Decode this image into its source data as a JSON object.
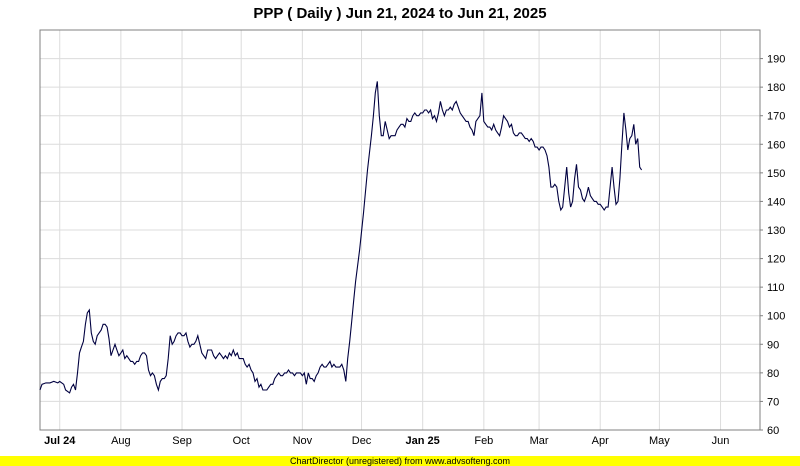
{
  "chart_data": {
    "type": "line",
    "title": "PPP ( Daily ) Jun 21, 2024 to Jun 21, 2025",
    "xlabel": "",
    "ylabel": "",
    "grid": true,
    "line_color": "#000040",
    "x_ticks": [
      {
        "label": "Jul 24",
        "day": 10,
        "bold": true
      },
      {
        "label": "Aug",
        "day": 41,
        "bold": false
      },
      {
        "label": "Sep",
        "day": 72,
        "bold": false
      },
      {
        "label": "Oct",
        "day": 102,
        "bold": false
      },
      {
        "label": "Nov",
        "day": 133,
        "bold": false
      },
      {
        "label": "Dec",
        "day": 163,
        "bold": false
      },
      {
        "label": "Jan 25",
        "day": 194,
        "bold": true
      },
      {
        "label": "Feb",
        "day": 225,
        "bold": false
      },
      {
        "label": "Mar",
        "day": 253,
        "bold": false
      },
      {
        "label": "Apr",
        "day": 284,
        "bold": false
      },
      {
        "label": "May",
        "day": 314,
        "bold": false
      },
      {
        "label": "Jun",
        "day": 345,
        "bold": false
      }
    ],
    "y_ticks": [
      60,
      70,
      80,
      90,
      100,
      110,
      120,
      130,
      140,
      150,
      160,
      170,
      180,
      190
    ],
    "ylim": [
      60,
      200
    ],
    "xlim_days": [
      0,
      365
    ],
    "series": [
      {
        "points": [
          [
            0,
            74
          ],
          [
            1,
            76
          ],
          [
            3,
            76.5
          ],
          [
            5,
            76.5
          ],
          [
            7,
            77
          ],
          [
            9,
            76.5
          ],
          [
            10,
            77
          ],
          [
            12,
            76
          ],
          [
            13,
            74
          ],
          [
            15,
            73
          ],
          [
            16,
            75
          ],
          [
            17,
            76
          ],
          [
            18,
            74
          ],
          [
            19,
            80
          ],
          [
            20,
            87
          ],
          [
            21,
            89
          ],
          [
            22,
            91
          ],
          [
            23,
            97
          ],
          [
            24,
            101
          ],
          [
            25,
            102
          ],
          [
            26,
            94
          ],
          [
            27,
            91
          ],
          [
            28,
            90
          ],
          [
            29,
            93
          ],
          [
            31,
            95
          ],
          [
            32,
            97
          ],
          [
            33,
            97
          ],
          [
            34,
            96
          ],
          [
            35,
            92
          ],
          [
            36,
            86
          ],
          [
            37,
            88
          ],
          [
            38,
            90
          ],
          [
            39,
            88
          ],
          [
            40,
            86
          ],
          [
            41,
            87
          ],
          [
            42,
            88
          ],
          [
            43,
            85
          ],
          [
            44,
            86
          ],
          [
            46,
            84
          ],
          [
            47,
            84
          ],
          [
            48,
            83
          ],
          [
            49,
            84
          ],
          [
            50,
            84
          ],
          [
            51,
            86
          ],
          [
            52,
            87
          ],
          [
            53,
            87
          ],
          [
            54,
            86
          ],
          [
            55,
            81
          ],
          [
            56,
            79
          ],
          [
            57,
            80
          ],
          [
            58,
            79
          ],
          [
            59,
            76
          ],
          [
            60,
            74
          ],
          [
            61,
            77
          ],
          [
            62,
            78
          ],
          [
            63,
            78
          ],
          [
            64,
            79
          ],
          [
            65,
            85
          ],
          [
            66,
            93
          ],
          [
            67,
            90
          ],
          [
            68,
            91
          ],
          [
            69,
            93
          ],
          [
            70,
            94
          ],
          [
            71,
            94
          ],
          [
            72,
            93
          ],
          [
            73,
            93
          ],
          [
            74,
            94
          ],
          [
            75,
            91
          ],
          [
            76,
            89
          ],
          [
            77,
            90
          ],
          [
            78,
            90
          ],
          [
            79,
            91
          ],
          [
            80,
            93
          ],
          [
            81,
            90
          ],
          [
            82,
            87
          ],
          [
            83,
            86
          ],
          [
            84,
            85
          ],
          [
            85,
            88
          ],
          [
            86,
            88
          ],
          [
            87,
            88
          ],
          [
            88,
            86
          ],
          [
            89,
            85
          ],
          [
            90,
            86
          ],
          [
            91,
            87
          ],
          [
            92,
            86
          ],
          [
            93,
            85
          ],
          [
            94,
            86
          ],
          [
            95,
            85
          ],
          [
            96,
            87
          ],
          [
            97,
            86
          ],
          [
            98,
            88
          ],
          [
            99,
            86
          ],
          [
            100,
            87
          ],
          [
            101,
            85
          ],
          [
            103,
            85
          ],
          [
            104,
            83
          ],
          [
            105,
            82
          ],
          [
            106,
            83
          ],
          [
            107,
            81
          ],
          [
            108,
            80
          ],
          [
            109,
            77
          ],
          [
            110,
            78
          ],
          [
            111,
            75
          ],
          [
            112,
            76
          ],
          [
            113,
            74
          ],
          [
            115,
            74
          ],
          [
            116,
            75
          ],
          [
            117,
            76
          ],
          [
            118,
            76
          ],
          [
            119,
            78
          ],
          [
            120,
            79
          ],
          [
            121,
            80
          ],
          [
            122,
            79
          ],
          [
            123,
            79
          ],
          [
            124,
            80
          ],
          [
            125,
            80
          ],
          [
            126,
            81
          ],
          [
            127,
            80
          ],
          [
            128,
            80
          ],
          [
            129,
            79
          ],
          [
            130,
            80
          ],
          [
            131,
            80
          ],
          [
            132,
            80
          ],
          [
            133,
            79
          ],
          [
            134,
            80
          ],
          [
            135,
            76
          ],
          [
            136,
            80
          ],
          [
            137,
            78
          ],
          [
            138,
            78
          ],
          [
            139,
            77
          ],
          [
            140,
            79
          ],
          [
            141,
            80
          ],
          [
            142,
            82
          ],
          [
            143,
            83
          ],
          [
            144,
            82
          ],
          [
            145,
            82
          ],
          [
            146,
            83
          ],
          [
            147,
            84
          ],
          [
            148,
            82
          ],
          [
            149,
            83
          ],
          [
            150,
            82
          ],
          [
            151,
            82
          ],
          [
            152,
            82
          ],
          [
            153,
            83
          ],
          [
            154,
            81
          ],
          [
            155,
            77
          ],
          [
            156,
            85
          ],
          [
            157,
            91
          ],
          [
            158,
            98
          ],
          [
            159,
            105
          ],
          [
            160,
            112
          ],
          [
            162,
            123
          ],
          [
            164,
            136
          ],
          [
            166,
            151
          ],
          [
            168,
            163
          ],
          [
            169,
            170
          ],
          [
            170,
            178
          ],
          [
            171,
            182
          ],
          [
            172,
            170
          ],
          [
            173,
            163
          ],
          [
            174,
            163
          ],
          [
            175,
            168
          ],
          [
            176,
            165
          ],
          [
            177,
            162
          ],
          [
            178,
            163
          ],
          [
            179,
            163
          ],
          [
            180,
            163
          ],
          [
            181,
            165
          ],
          [
            182,
            166
          ],
          [
            183,
            167
          ],
          [
            184,
            167
          ],
          [
            185,
            166
          ],
          [
            186,
            169
          ],
          [
            187,
            168
          ],
          [
            188,
            168
          ],
          [
            189,
            170
          ],
          [
            190,
            171
          ],
          [
            191,
            170
          ],
          [
            192,
            170
          ],
          [
            193,
            171
          ],
          [
            194,
            171
          ],
          [
            195,
            172
          ],
          [
            196,
            172
          ],
          [
            197,
            171
          ],
          [
            198,
            172
          ],
          [
            199,
            169
          ],
          [
            200,
            170
          ],
          [
            201,
            168
          ],
          [
            202,
            171
          ],
          [
            203,
            175
          ],
          [
            204,
            172
          ],
          [
            205,
            170
          ],
          [
            206,
            172
          ],
          [
            207,
            172
          ],
          [
            208,
            173
          ],
          [
            209,
            172
          ],
          [
            210,
            174
          ],
          [
            211,
            175
          ],
          [
            212,
            173
          ],
          [
            213,
            171
          ],
          [
            214,
            170
          ],
          [
            215,
            169
          ],
          [
            216,
            168
          ],
          [
            217,
            168
          ],
          [
            218,
            166
          ],
          [
            219,
            165
          ],
          [
            220,
            163
          ],
          [
            221,
            168
          ],
          [
            222,
            169
          ],
          [
            223,
            170
          ],
          [
            224,
            178
          ],
          [
            225,
            168
          ],
          [
            226,
            167
          ],
          [
            227,
            166
          ],
          [
            228,
            166
          ],
          [
            229,
            165
          ],
          [
            230,
            167
          ],
          [
            231,
            165
          ],
          [
            232,
            164
          ],
          [
            233,
            163
          ],
          [
            234,
            166
          ],
          [
            235,
            170
          ],
          [
            236,
            169
          ],
          [
            237,
            168
          ],
          [
            238,
            166
          ],
          [
            239,
            167
          ],
          [
            240,
            164
          ],
          [
            241,
            163
          ],
          [
            242,
            163
          ],
          [
            243,
            164
          ],
          [
            244,
            164
          ],
          [
            245,
            163
          ],
          [
            246,
            162
          ],
          [
            247,
            162
          ],
          [
            248,
            161
          ],
          [
            249,
            162
          ],
          [
            250,
            161
          ],
          [
            251,
            159
          ],
          [
            252,
            159
          ],
          [
            253,
            158
          ],
          [
            254,
            159
          ],
          [
            255,
            159
          ],
          [
            256,
            158
          ],
          [
            257,
            156
          ],
          [
            258,
            152
          ],
          [
            259,
            145
          ],
          [
            260,
            145
          ],
          [
            261,
            146
          ],
          [
            262,
            145
          ],
          [
            263,
            140
          ],
          [
            264,
            137
          ],
          [
            265,
            138
          ],
          [
            266,
            145
          ],
          [
            267,
            152
          ],
          [
            268,
            143
          ],
          [
            269,
            138
          ],
          [
            270,
            140
          ],
          [
            271,
            148
          ],
          [
            272,
            153
          ],
          [
            273,
            145
          ],
          [
            274,
            144
          ],
          [
            275,
            141
          ],
          [
            276,
            140
          ],
          [
            277,
            142
          ],
          [
            278,
            145
          ],
          [
            279,
            142
          ],
          [
            280,
            141
          ],
          [
            281,
            140
          ],
          [
            282,
            140
          ],
          [
            283,
            139
          ],
          [
            284,
            139
          ],
          [
            285,
            138
          ],
          [
            286,
            137
          ],
          [
            287,
            138
          ],
          [
            288,
            138
          ],
          [
            289,
            145
          ],
          [
            290,
            152
          ],
          [
            291,
            145
          ],
          [
            292,
            139
          ],
          [
            293,
            140
          ],
          [
            294,
            148
          ],
          [
            295,
            160
          ],
          [
            296,
            171
          ],
          [
            297,
            165
          ],
          [
            298,
            158
          ],
          [
            299,
            162
          ],
          [
            300,
            163
          ],
          [
            301,
            167
          ],
          [
            302,
            160
          ],
          [
            303,
            162
          ],
          [
            304,
            152
          ],
          [
            305,
            151
          ]
        ]
      }
    ]
  },
  "footer_text": "ChartDirector (unregistered) from www.advsofteng.com"
}
